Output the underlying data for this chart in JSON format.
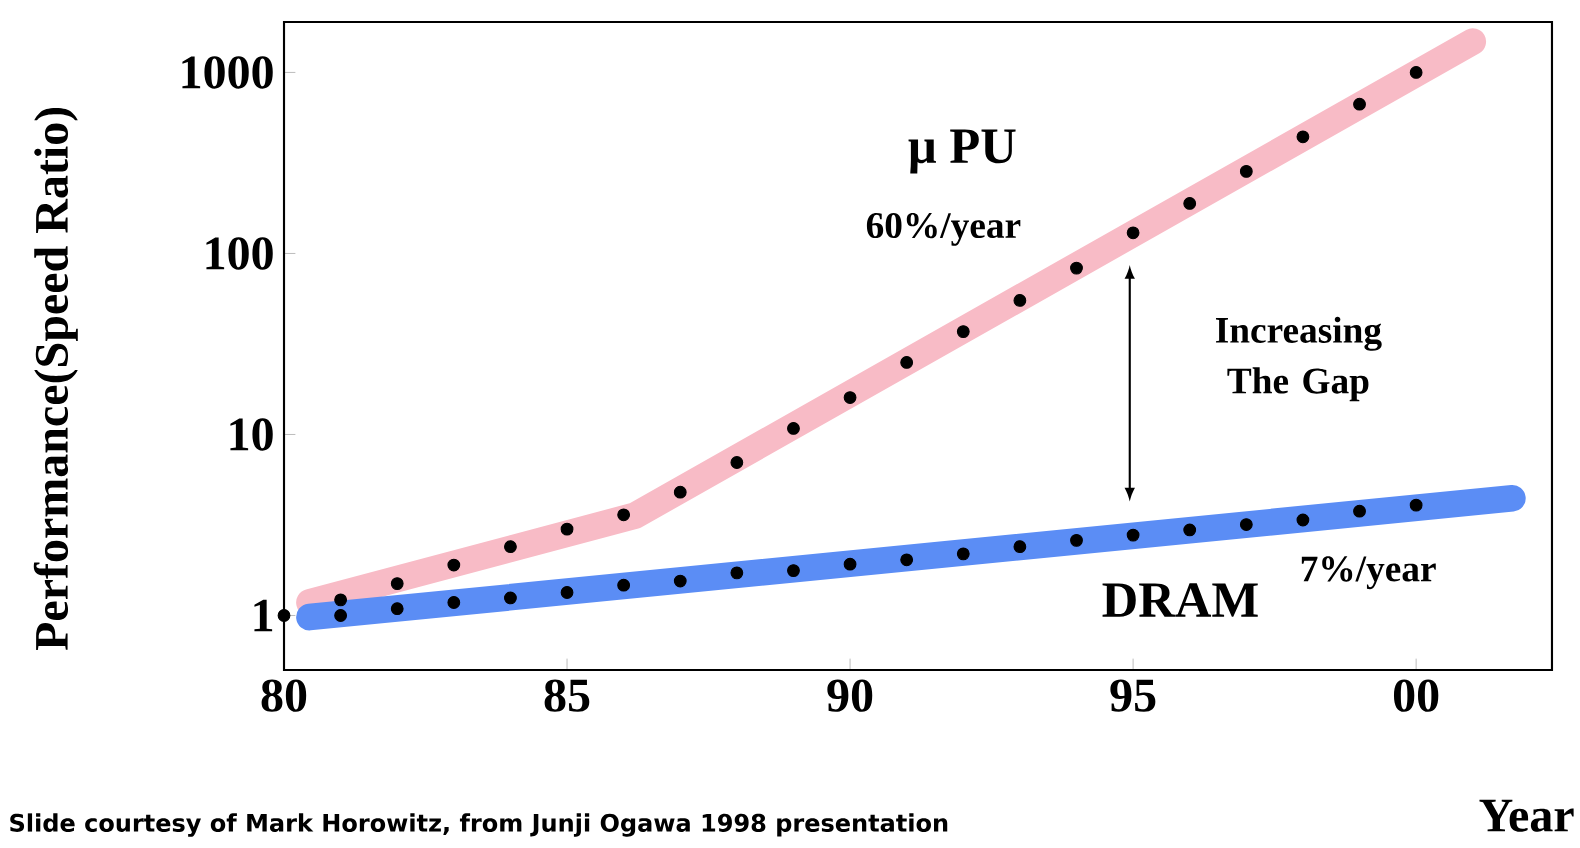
{
  "chart_data": {
    "type": "line",
    "xlabel": "Year",
    "ylabel": "Performance(Speed Ratio)",
    "xlim": [
      1980,
      2002.4
    ],
    "ylim": [
      0.5,
      1900
    ],
    "log": "y",
    "xticks": [
      {
        "value": 1980,
        "label": "80"
      },
      {
        "value": 1985,
        "label": "85"
      },
      {
        "value": 1990,
        "label": "90"
      },
      {
        "value": 1995,
        "label": "95"
      },
      {
        "value": 2000,
        "label": "00"
      }
    ],
    "yticks": [
      1,
      10,
      100,
      1000
    ],
    "grid": false,
    "annotations": [
      "60%/year",
      "7%/year",
      "Increasing The Gap",
      "Slide courtesy of Mark Horowitz, from Junji Ogawa 1998 presentation"
    ],
    "series": [
      {
        "name": "μ PU",
        "color": "#f8bbc6",
        "line_style": "solid",
        "marker": "none",
        "x": [
          1980.45,
          1986.2,
          2001.0
        ],
        "values": [
          1.18,
          3.56,
          1480
        ]
      },
      {
        "name": "DRAM",
        "color": "#5b8df5",
        "line_style": "solid",
        "marker": "none",
        "x": [
          1980.45,
          2001.7
        ],
        "values": [
          0.98,
          4.44
        ]
      },
      {
        "type": "scatter",
        "color": "#000000",
        "marker": "circle",
        "x": [
          1980,
          1981,
          1982,
          1983,
          1984,
          1985,
          1986,
          1987,
          1988,
          1989,
          1990,
          1991,
          1992,
          1993,
          1994,
          1995,
          1996,
          1997,
          1998,
          1999,
          2000
        ],
        "values": [
          1,
          1.22,
          1.5,
          1.9,
          2.4,
          3.0,
          3.6,
          4.8,
          7.0,
          10.8,
          16,
          25,
          37,
          55,
          83,
          130,
          189,
          284,
          441,
          668,
          1000
        ]
      },
      {
        "type": "scatter",
        "color": "#000000",
        "marker": "circle",
        "x": [
          1981,
          1982,
          1983,
          1984,
          1985,
          1986,
          1987,
          1988,
          1989,
          1990,
          1991,
          1992,
          1993,
          1994,
          1995,
          1996,
          1997,
          1998,
          1999,
          2000
        ],
        "values": [
          1.0,
          1.09,
          1.18,
          1.25,
          1.34,
          1.47,
          1.55,
          1.72,
          1.77,
          1.92,
          2.03,
          2.19,
          2.4,
          2.6,
          2.78,
          2.97,
          3.18,
          3.37,
          3.77,
          4.07
        ]
      }
    ]
  }
}
